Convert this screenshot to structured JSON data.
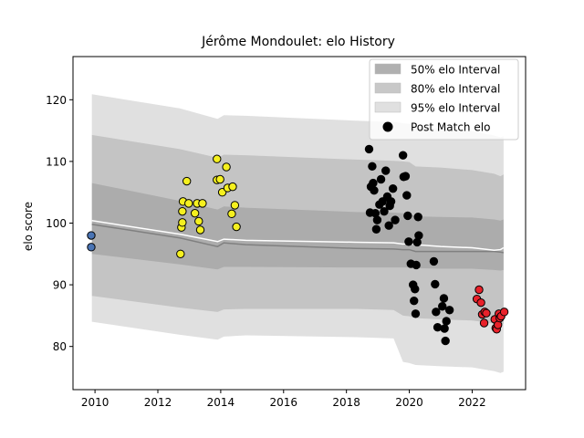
{
  "chart_data": {
    "type": "scatter",
    "title": "Jérôme Mondoulet: elo History",
    "xlabel": "",
    "ylabel": "elo score",
    "xlim": [
      2009.3,
      2023.7
    ],
    "ylim": [
      73,
      127
    ],
    "x_ticks": [
      "2010",
      "2012",
      "2014",
      "2016",
      "2018",
      "2020",
      "2022"
    ],
    "y_ticks": [
      "80",
      "90",
      "100",
      "110",
      "120"
    ],
    "grid": false,
    "legend_position": "top-right",
    "legend": [
      {
        "label": "50% elo Interval",
        "color": "#b0b0b0"
      },
      {
        "label": "80% elo Interval",
        "color": "#c8c8c8"
      },
      {
        "label": "95% elo Interval",
        "color": "#e0e0e0"
      },
      {
        "label": "Post Match elo",
        "color": "#000000"
      }
    ],
    "band_x": [
      2009.9,
      2012.7,
      2013.9,
      2014.1,
      2014.8,
      2018.3,
      2019.5,
      2019.8,
      2020.0,
      2020.2,
      2021.0,
      2022.0,
      2022.7,
      2022.9,
      2023.0
    ],
    "mean_line": [
      99.8,
      97.6,
      96.2,
      96.8,
      96.5,
      95.9,
      95.8,
      95.7,
      95.7,
      95.4,
      95.4,
      95.4,
      95.4,
      95.3,
      95.2
    ],
    "white_line": [
      100.4,
      98.2,
      97.0,
      97.4,
      97.2,
      96.9,
      96.8,
      96.6,
      96.7,
      96.5,
      96.2,
      96.0,
      95.6,
      95.7,
      96.0
    ],
    "band50": {
      "lower": [
        95.0,
        93.3,
        92.5,
        92.9,
        92.9,
        92.8,
        92.8,
        92.8,
        92.8,
        92.7,
        92.6,
        92.6,
        92.4,
        92.3,
        92.4
      ],
      "upper": [
        106.5,
        103.6,
        102.2,
        102.7,
        102.5,
        101.8,
        101.7,
        101.6,
        101.5,
        101.1,
        101.0,
        100.9,
        100.6,
        100.4,
        100.6
      ]
    },
    "band80": {
      "lower": [
        88.2,
        86.3,
        85.6,
        86.0,
        86.1,
        86.1,
        85.9,
        85.0,
        84.9,
        84.6,
        84.4,
        84.2,
        83.7,
        83.5,
        83.7
      ],
      "upper": [
        114.3,
        112.0,
        110.6,
        111.1,
        111.0,
        110.3,
        110.1,
        110.0,
        109.9,
        109.2,
        109.0,
        108.6,
        108.0,
        107.6,
        107.9
      ]
    },
    "band95": {
      "lower": [
        84.0,
        81.9,
        81.1,
        81.6,
        81.8,
        81.5,
        81.3,
        77.5,
        77.3,
        77.0,
        76.8,
        76.6,
        76.0,
        75.7,
        75.9
      ],
      "upper": [
        120.9,
        118.6,
        116.9,
        117.5,
        117.4,
        116.6,
        116.4,
        116.2,
        116.1,
        115.5,
        115.3,
        114.9,
        114.2,
        113.9,
        114.1
      ]
    },
    "series": [
      {
        "marker_color": "#4a74b4",
        "points": [
          [
            2009.88,
            98.0
          ],
          [
            2009.88,
            96.1
          ]
        ]
      },
      {
        "marker_color": "#f5f01f",
        "points": [
          [
            2012.72,
            95.0
          ],
          [
            2012.75,
            99.3
          ],
          [
            2012.78,
            100.1
          ],
          [
            2012.78,
            101.9
          ],
          [
            2012.8,
            103.5
          ],
          [
            2012.92,
            106.8
          ],
          [
            2012.98,
            103.2
          ],
          [
            2013.18,
            101.6
          ],
          [
            2013.25,
            103.2
          ],
          [
            2013.3,
            100.3
          ],
          [
            2013.35,
            98.9
          ],
          [
            2013.42,
            103.2
          ],
          [
            2013.88,
            110.4
          ],
          [
            2013.88,
            107.0
          ],
          [
            2013.98,
            107.1
          ],
          [
            2014.05,
            105.0
          ],
          [
            2014.18,
            109.1
          ],
          [
            2014.22,
            105.7
          ],
          [
            2014.35,
            101.5
          ],
          [
            2014.38,
            105.9
          ],
          [
            2014.45,
            102.9
          ],
          [
            2014.5,
            99.4
          ]
        ]
      },
      {
        "marker_color": "#000000",
        "points": [
          [
            2018.72,
            112.0
          ],
          [
            2018.75,
            101.7
          ],
          [
            2018.78,
            105.9
          ],
          [
            2018.82,
            109.2
          ],
          [
            2018.85,
            106.5
          ],
          [
            2018.88,
            105.3
          ],
          [
            2018.92,
            101.6
          ],
          [
            2018.95,
            99.0
          ],
          [
            2018.98,
            100.5
          ],
          [
            2019.05,
            103.0
          ],
          [
            2019.1,
            107.1
          ],
          [
            2019.15,
            103.5
          ],
          [
            2019.2,
            101.9
          ],
          [
            2019.25,
            108.5
          ],
          [
            2019.3,
            104.3
          ],
          [
            2019.35,
            99.6
          ],
          [
            2019.38,
            102.8
          ],
          [
            2019.42,
            103.5
          ],
          [
            2019.48,
            105.6
          ],
          [
            2019.55,
            100.5
          ],
          [
            2019.8,
            111.0
          ],
          [
            2019.82,
            107.5
          ],
          [
            2019.88,
            107.6
          ],
          [
            2019.92,
            104.5
          ],
          [
            2019.95,
            101.2
          ],
          [
            2019.98,
            97.0
          ],
          [
            2020.05,
            93.4
          ],
          [
            2020.12,
            90.0
          ],
          [
            2020.15,
            87.4
          ],
          [
            2020.18,
            89.3
          ],
          [
            2020.2,
            85.3
          ],
          [
            2020.22,
            93.2
          ],
          [
            2020.25,
            96.9
          ],
          [
            2020.28,
            101.0
          ],
          [
            2020.3,
            98.0
          ],
          [
            2020.78,
            93.8
          ],
          [
            2020.82,
            90.1
          ],
          [
            2020.85,
            85.6
          ],
          [
            2020.9,
            83.1
          ],
          [
            2021.05,
            86.5
          ],
          [
            2021.1,
            87.8
          ],
          [
            2021.12,
            82.9
          ],
          [
            2021.15,
            80.9
          ],
          [
            2021.18,
            84.1
          ],
          [
            2021.28,
            85.9
          ]
        ]
      },
      {
        "marker_color": "#e8212a",
        "points": [
          [
            2022.15,
            87.7
          ],
          [
            2022.22,
            89.2
          ],
          [
            2022.28,
            87.1
          ],
          [
            2022.32,
            85.2
          ],
          [
            2022.38,
            83.8
          ],
          [
            2022.4,
            85.6
          ],
          [
            2022.45,
            85.4
          ],
          [
            2022.72,
            84.4
          ],
          [
            2022.75,
            83.0
          ],
          [
            2022.78,
            82.8
          ],
          [
            2022.82,
            83.5
          ],
          [
            2022.85,
            85.3
          ],
          [
            2022.88,
            84.6
          ],
          [
            2022.92,
            84.9
          ],
          [
            2023.02,
            85.6
          ]
        ]
      }
    ]
  }
}
